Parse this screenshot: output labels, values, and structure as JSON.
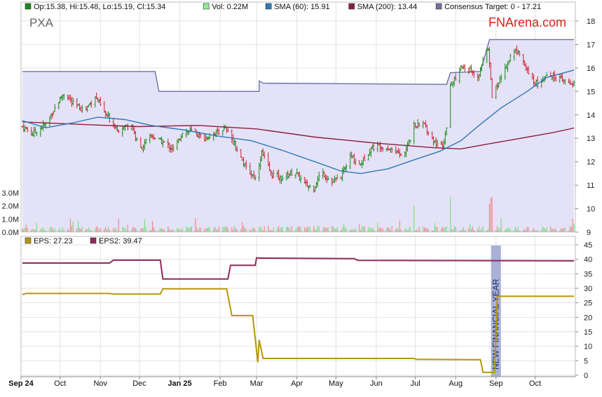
{
  "chart_data": [
    {
      "type": "line",
      "panel": "price",
      "ticker": "PXA",
      "brand": "FNArena.com",
      "legend": [
        {
          "key": "ohlc",
          "label": "Op:15.38, Hi:15.48, Lo:15.19, Cl:15.34",
          "color": "#1a8a1a"
        },
        {
          "key": "vol",
          "label": "Vol: 0.22M",
          "color": "#90ee90"
        },
        {
          "key": "sma60",
          "label": "SMA (60): 15.91",
          "color": "#2f79b9"
        },
        {
          "key": "sma200",
          "label": "SMA (200): 13.44",
          "color": "#8b1f3c"
        },
        {
          "key": "target",
          "label": "Consensus Target: 0 - 17.21",
          "color": "#7070a8"
        }
      ],
      "ylim": [
        9,
        18.3
      ],
      "yticks": [
        "18",
        "17",
        "16",
        "15",
        "14",
        "13",
        "12",
        "11",
        "10",
        "9"
      ],
      "volume_ticks": [
        "3.0M",
        "2.0M",
        "1.0M",
        "0.0M"
      ],
      "volume_ylim": [
        0,
        3.0
      ],
      "grid": true,
      "series": [
        {
          "key": "target",
          "points": [
            [
              "2024-09-02",
              15.85
            ],
            [
              "2024-12-13",
              15.85
            ],
            [
              "2024-12-16",
              15.0
            ],
            [
              "2025-03-03",
              15.0
            ],
            [
              "2025-03-03",
              15.45
            ],
            [
              "2025-03-06",
              15.35
            ],
            [
              "2025-07-25",
              15.3
            ],
            [
              "2025-07-28",
              15.8
            ],
            [
              "2025-08-20",
              15.85
            ],
            [
              "2025-08-27",
              17.21
            ],
            [
              "2025-10-31",
              17.21
            ]
          ]
        },
        {
          "key": "sma60",
          "points": [
            [
              "2024-09-02",
              13.75
            ],
            [
              "2024-09-20",
              13.45
            ],
            [
              "2024-10-10",
              13.65
            ],
            [
              "2024-10-30",
              13.9
            ],
            [
              "2024-11-20",
              13.8
            ],
            [
              "2024-12-10",
              13.55
            ],
            [
              "2025-01-05",
              13.35
            ],
            [
              "2025-01-30",
              13.1
            ],
            [
              "2025-02-25",
              12.9
            ],
            [
              "2025-03-20",
              12.5
            ],
            [
              "2025-04-15",
              12.0
            ],
            [
              "2025-05-05",
              11.6
            ],
            [
              "2025-05-20",
              11.5
            ],
            [
              "2025-06-10",
              11.7
            ],
            [
              "2025-07-01",
              12.1
            ],
            [
              "2025-07-20",
              12.45
            ],
            [
              "2025-08-05",
              12.9
            ],
            [
              "2025-08-20",
              13.6
            ],
            [
              "2025-09-05",
              14.3
            ],
            [
              "2025-09-25",
              15.0
            ],
            [
              "2025-10-10",
              15.6
            ],
            [
              "2025-10-31",
              15.91
            ]
          ]
        },
        {
          "key": "sma200",
          "points": [
            [
              "2024-09-02",
              13.7
            ],
            [
              "2024-10-15",
              13.6
            ],
            [
              "2024-11-30",
              13.5
            ],
            [
              "2025-01-15",
              13.55
            ],
            [
              "2025-03-01",
              13.4
            ],
            [
              "2025-04-15",
              13.05
            ],
            [
              "2025-05-31",
              12.8
            ],
            [
              "2025-07-15",
              12.6
            ],
            [
              "2025-08-05",
              12.55
            ],
            [
              "2025-08-25",
              12.75
            ],
            [
              "2025-09-20",
              13.0
            ],
            [
              "2025-10-15",
              13.25
            ],
            [
              "2025-10-31",
              13.44
            ]
          ]
        },
        {
          "key": "close",
          "points": [
            [
              "2024-09-02",
              13.5
            ],
            [
              "2024-09-10",
              13.2
            ],
            [
              "2024-09-20",
              13.6
            ],
            [
              "2024-09-30",
              14.6
            ],
            [
              "2024-10-05",
              15.0
            ],
            [
              "2024-10-10",
              14.5
            ],
            [
              "2024-10-20",
              14.2
            ],
            [
              "2024-10-28",
              14.8
            ],
            [
              "2024-11-05",
              14.0
            ],
            [
              "2024-11-15",
              13.4
            ],
            [
              "2024-11-25",
              13.6
            ],
            [
              "2024-12-01",
              12.5
            ],
            [
              "2024-12-10",
              13.1
            ],
            [
              "2024-12-20",
              12.8
            ],
            [
              "2024-12-28",
              12.5
            ],
            [
              "2025-01-03",
              13.3
            ],
            [
              "2025-01-10",
              13.3
            ],
            [
              "2025-01-20",
              13.0
            ],
            [
              "2025-01-30",
              13.3
            ],
            [
              "2025-02-05",
              13.4
            ],
            [
              "2025-02-12",
              12.8
            ],
            [
              "2025-02-20",
              11.8
            ],
            [
              "2025-02-28",
              11.3
            ],
            [
              "2025-03-05",
              12.4
            ],
            [
              "2025-03-12",
              11.5
            ],
            [
              "2025-03-20",
              11.3
            ],
            [
              "2025-03-30",
              11.6
            ],
            [
              "2025-04-08",
              11.0
            ],
            [
              "2025-04-14",
              10.9
            ],
            [
              "2025-04-20",
              11.6
            ],
            [
              "2025-04-28",
              11.1
            ],
            [
              "2025-05-05",
              11.4
            ],
            [
              "2025-05-12",
              12.2
            ],
            [
              "2025-05-20",
              11.9
            ],
            [
              "2025-05-28",
              12.6
            ],
            [
              "2025-06-05",
              12.7
            ],
            [
              "2025-06-15",
              12.5
            ],
            [
              "2025-06-22",
              12.2
            ],
            [
              "2025-06-30",
              13.5
            ],
            [
              "2025-07-08",
              13.6
            ],
            [
              "2025-07-15",
              12.9
            ],
            [
              "2025-07-22",
              12.6
            ],
            [
              "2025-07-26",
              13.8
            ],
            [
              "2025-07-28",
              15.2
            ],
            [
              "2025-08-05",
              16.0
            ],
            [
              "2025-08-12",
              15.9
            ],
            [
              "2025-08-18",
              15.5
            ],
            [
              "2025-08-22",
              16.4
            ],
            [
              "2025-08-26",
              16.8
            ],
            [
              "2025-08-29",
              14.8
            ],
            [
              "2025-09-05",
              15.6
            ],
            [
              "2025-09-12",
              16.5
            ],
            [
              "2025-09-18",
              16.8
            ],
            [
              "2025-09-26",
              15.7
            ],
            [
              "2025-10-03",
              15.3
            ],
            [
              "2025-10-10",
              15.8
            ],
            [
              "2025-10-17",
              15.6
            ],
            [
              "2025-10-24",
              15.4
            ],
            [
              "2025-10-31",
              15.34
            ]
          ]
        }
      ]
    },
    {
      "type": "line",
      "panel": "eps",
      "legend": [
        {
          "key": "eps",
          "label": "EPS: 27.23",
          "color": "#b8960a"
        },
        {
          "key": "eps2",
          "label": "EPS2: 39.47",
          "color": "#8e2a5c"
        }
      ],
      "ylim": [
        0,
        45
      ],
      "yticks": [
        "45",
        "40",
        "35",
        "30",
        "25",
        "20",
        "15",
        "10",
        "5",
        "0"
      ],
      "annotation": "NEW FINANCIAL YEAR",
      "annotation_date": "2025-09-01",
      "series": [
        {
          "key": "eps2",
          "points": [
            [
              "2024-09-02",
              38.7
            ],
            [
              "2024-11-08",
              38.7
            ],
            [
              "2024-11-11",
              39.7
            ],
            [
              "2024-12-17",
              39.7
            ],
            [
              "2024-12-19",
              33.2
            ],
            [
              "2025-02-07",
              33.2
            ],
            [
              "2025-02-09",
              37.9
            ],
            [
              "2025-02-28",
              37.9
            ],
            [
              "2025-03-01",
              40.5
            ],
            [
              "2025-03-04",
              40.4
            ],
            [
              "2025-05-15",
              40.2
            ],
            [
              "2025-05-18",
              39.6
            ],
            [
              "2025-10-31",
              39.47
            ]
          ]
        },
        {
          "key": "eps",
          "points": [
            [
              "2024-09-02",
              27.8
            ],
            [
              "2024-09-05",
              28.2
            ],
            [
              "2024-11-08",
              28.2
            ],
            [
              "2024-11-11",
              28.0
            ],
            [
              "2024-12-17",
              28.0
            ],
            [
              "2024-12-19",
              29.8
            ],
            [
              "2025-02-06",
              29.8
            ],
            [
              "2025-02-10",
              20.6
            ],
            [
              "2025-02-26",
              20.6
            ],
            [
              "2025-03-02",
              4.5
            ],
            [
              "2025-03-03",
              12.2
            ],
            [
              "2025-03-06",
              5.8
            ],
            [
              "2025-06-30",
              5.8
            ],
            [
              "2025-07-02",
              5.5
            ],
            [
              "2025-08-20",
              5.4
            ],
            [
              "2025-08-22",
              1.0
            ],
            [
              "2025-08-31",
              1.0
            ],
            [
              "2025-09-02",
              27.23
            ],
            [
              "2025-10-31",
              27.23
            ]
          ]
        }
      ]
    }
  ],
  "x_axis": {
    "ticks": [
      {
        "date": "2024-09-01",
        "label": "Sep 24",
        "bold": true
      },
      {
        "date": "2024-10-01",
        "label": "Oct",
        "bold": false
      },
      {
        "date": "2024-11-01",
        "label": "Nov",
        "bold": false
      },
      {
        "date": "2024-12-01",
        "label": "Dec",
        "bold": false
      },
      {
        "date": "2025-01-01",
        "label": "Jan 25",
        "bold": true
      },
      {
        "date": "2025-02-01",
        "label": "Feb",
        "bold": false
      },
      {
        "date": "2025-03-01",
        "label": "Mar",
        "bold": false
      },
      {
        "date": "2025-04-01",
        "label": "Apr",
        "bold": false
      },
      {
        "date": "2025-05-01",
        "label": "May",
        "bold": false
      },
      {
        "date": "2025-06-01",
        "label": "Jun",
        "bold": false
      },
      {
        "date": "2025-07-01",
        "label": "Jul",
        "bold": false
      },
      {
        "date": "2025-08-01",
        "label": "Aug",
        "bold": false
      },
      {
        "date": "2025-09-01",
        "label": "Sep",
        "bold": false
      },
      {
        "date": "2025-10-01",
        "label": "Oct",
        "bold": false
      }
    ],
    "start": "2024-09-01",
    "end": "2025-11-01"
  },
  "colors": {
    "frame": "#bdbdbd",
    "grid": "#e2e2e2",
    "shade": "#e4e2f6",
    "candle_up": "#1a8a1a",
    "candle_down": "#cc2233",
    "volume_up": "#7ee07e",
    "volume_down": "#f08a8a",
    "annotation_bg": "#a9b1d6",
    "brand": "#d9231e"
  }
}
